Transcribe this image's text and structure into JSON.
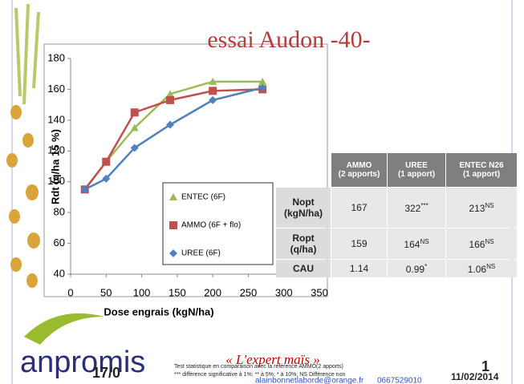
{
  "title": "essai Audon -40-",
  "chart_data": {
    "type": "line",
    "x": [
      20,
      50,
      90,
      140,
      200,
      270
    ],
    "series": [
      {
        "name": "ENTEC (6F)",
        "color": "#9bbb59",
        "marker": "triangle",
        "values": [
          95,
          113,
          135,
          157,
          165,
          165
        ]
      },
      {
        "name": "AMMO (6F + flo)",
        "color": "#c0504d",
        "marker": "square",
        "values": [
          95,
          113,
          145,
          153,
          159,
          160
        ]
      },
      {
        "name": "UREE (6F)",
        "color": "#4f81bd",
        "marker": "diamond",
        "values": [
          95,
          102,
          122,
          137,
          153,
          161
        ]
      }
    ],
    "xlim": [
      0,
      350
    ],
    "xticks": [
      0,
      50,
      100,
      150,
      200,
      250,
      300,
      350
    ],
    "ylim": [
      40,
      180
    ],
    "yticks": [
      40,
      60,
      80,
      100,
      120,
      140,
      160,
      180
    ],
    "xlabel": "Dose engrais (kgN/ha)",
    "ylabel": "Rdt (q/ha 15 %)"
  },
  "table": {
    "header": [
      [
        "AMMO",
        "(2 apports)"
      ],
      [
        "UREE",
        "(1 apport)"
      ],
      [
        "ENTEC N26",
        "(1 apport)"
      ]
    ],
    "rows": [
      {
        "label": [
          "Nopt",
          "(kgN/ha)"
        ],
        "cells": [
          {
            "v": "167",
            "s": ""
          },
          {
            "v": "322",
            "s": "***"
          },
          {
            "v": "213",
            "s": "NS"
          }
        ]
      },
      {
        "label": [
          "Ropt",
          "(q/ha)"
        ],
        "cells": [
          {
            "v": "159",
            "s": ""
          },
          {
            "v": "164",
            "s": "NS"
          },
          {
            "v": "166",
            "s": "NS"
          }
        ]
      },
      {
        "label": [
          "CAU"
        ],
        "cells": [
          {
            "v": "1.14",
            "s": ""
          },
          {
            "v": "0.99",
            "s": "*"
          },
          {
            "v": "1.06",
            "s": "NS"
          }
        ]
      }
    ]
  },
  "footer": {
    "logo": "anpromis",
    "page": "17/0",
    "test": "Test statistique en comparaison avec la référence AMMO(2 apports)",
    "signif": "*** différence significative à 1%; ** à 5%; * à 10%; NS Différence non",
    "slogan": "« L'expert maïs »",
    "email": "alainbonnetlaborde@orange.fr",
    "phone": "0667529010",
    "slide": "1",
    "date": "11/02/2014"
  }
}
